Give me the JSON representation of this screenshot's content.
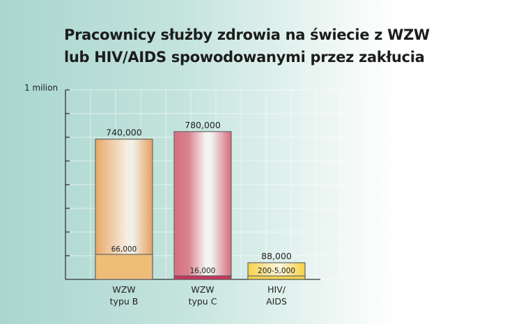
{
  "title_lines": [
    "Pracownicy służby zdrowia na świecie z WZW",
    "lub HIV/AIDS spowodowanymi przez zakłucia"
  ],
  "chart_data": {
    "type": "bar",
    "title": "Pracownicy służby zdrowia na świecie z WZW lub HIV/AIDS spowodowanymi przez zakłucia",
    "ylabel": "1 milion",
    "ylim": [
      0,
      1000000
    ],
    "yticks_count": 8,
    "categories": [
      "WZW typu B",
      "WZW typu C",
      "HIV/ AIDS"
    ],
    "category_lines": [
      [
        "WZW",
        "typu B"
      ],
      [
        "WZW",
        "typu C"
      ],
      [
        "HIV/",
        "AIDS"
      ]
    ],
    "values": [
      740000,
      780000,
      88000
    ],
    "value_labels": [
      "740,000",
      "780,000",
      "88,000"
    ],
    "inner_values": [
      66000,
      16000,
      5000
    ],
    "inner_labels": [
      "66,000",
      "16,000",
      "200-5,000"
    ],
    "colors": [
      "#e9a866",
      "#d66f80",
      "#f5d24a"
    ],
    "inner_colors": [
      "#eebd78",
      "#c93558",
      "#f4d24a"
    ],
    "grid": true,
    "background": "world map"
  }
}
